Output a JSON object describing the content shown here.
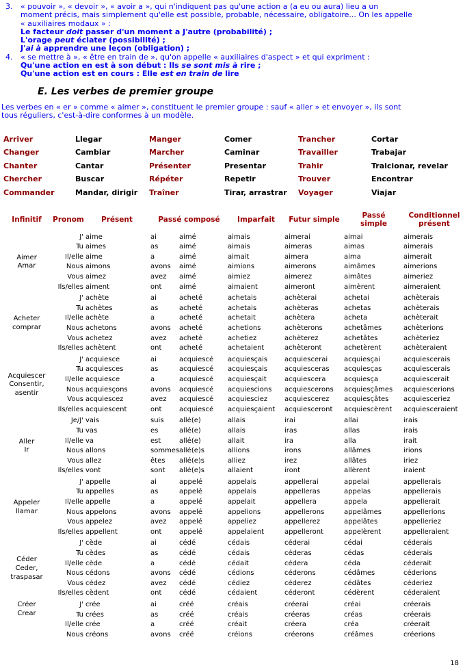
{
  "colors": {
    "text_blue": "#0000EE",
    "vocab_red": "#8B0000",
    "header_red": "#990000"
  },
  "page": {
    "number": "18"
  },
  "intro": {
    "items": [
      {
        "number": "3.",
        "lines": [
          {
            "segs": [
              {
                "t": "« pouvoir », « devoir », « avoir a », qui n'indiquent pas qu'une action a (a eu ou aura) lieu a un"
              }
            ]
          },
          {
            "segs": [
              {
                "t": "moment précis, mais simplement qu'elle est possible, probable, nécessaire, obligatoire... On les appelle"
              }
            ]
          },
          {
            "segs": [
              {
                "t": "« auxiliaires modaux » :"
              }
            ]
          },
          {
            "segs": [
              {
                "t": "Le facteur ",
                "b": true
              },
              {
                "t": "doit",
                "b": true,
                "i": true
              },
              {
                "t": " passer d'un moment a J'autre (probabilité) ;",
                "b": true
              }
            ]
          },
          {
            "segs": [
              {
                "t": "L'orage ",
                "b": true
              },
              {
                "t": "peut",
                "b": true,
                "i": true
              },
              {
                "t": " éclater (possibilité) ;",
                "b": true
              }
            ]
          },
          {
            "segs": [
              {
                "t": "J'",
                "b": true
              },
              {
                "t": "ai à",
                "b": true,
                "i": true
              },
              {
                "t": " apprendre une leçon (obligation) ;",
                "b": true
              }
            ]
          }
        ]
      },
      {
        "number": "4.",
        "lines": [
          {
            "segs": [
              {
                "t": "« se mettre à », « être en train de », qu'on appelle « auxiliaires d'aspect » et qui expriment :"
              }
            ]
          },
          {
            "segs": [
              {
                "t": "Qu'une action en est à son début : Ils ",
                "b": true
              },
              {
                "t": "se sont mis à",
                "b": true,
                "i": true
              },
              {
                "t": " rire ;",
                "b": true
              }
            ]
          },
          {
            "segs": [
              {
                "t": "Qu'une action est en cours : Elle ",
                "b": true
              },
              {
                "t": "est en train de",
                "b": true,
                "i": true
              },
              {
                "t": " lire",
                "b": true
              }
            ]
          }
        ]
      }
    ]
  },
  "heading": "E. Les verbes de premier groupe",
  "paragraph": {
    "lines": [
      "Les verbes en « er » comme « aimer », constituent le premier groupe : sauf « aller » et envoyer », ils sont",
      "tous réguliers, c'est-à-dire conformes à un modèle."
    ]
  },
  "vocab": {
    "rows": [
      [
        "Arriver",
        "Llegar",
        "Manger",
        "Comer",
        "Trancher",
        "Cortar"
      ],
      [
        "Changer",
        "Cambiar",
        "Marcher",
        "Caminar",
        "Travailler",
        "Trabajar"
      ],
      [
        "Chanter",
        "Cantar",
        "Présenter",
        "Presentar",
        "Trahir",
        "Traicionar, revelar"
      ],
      [
        "Chercher",
        "Buscar",
        "Répéter",
        "Repetir",
        "Trouver",
        "Encontrar"
      ],
      [
        "Commander",
        "Mandar, dirigir",
        "Traîner",
        "Tirar, arrastrar",
        "Voyager",
        "Viajar"
      ]
    ]
  },
  "conjugation": {
    "headers": [
      "Infinitif",
      "Pronom",
      "Présent",
      "Passé composé",
      "Imparfait",
      "Futur simple",
      "Passé\nsimple",
      "Conditionnel\nprésent"
    ],
    "verbs": [
      {
        "infinitive": [
          "Aimer",
          "Amar"
        ],
        "label_align": "center",
        "rows": [
          [
            "J'",
            "aime",
            "ai",
            "aimé",
            "aimais",
            "aimerai",
            "aimai",
            "aimerais"
          ],
          [
            "Tu",
            "aimes",
            "as",
            "aimé",
            "aimais",
            "aimeras",
            "aimas",
            "aimerais"
          ],
          [
            "Il/elle",
            "aime",
            "a",
            "aimé",
            "aimait",
            "aimera",
            "aima",
            "aimerait"
          ],
          [
            "Nous",
            "aimons",
            "avons",
            "aimé",
            "aimions",
            "aimerons",
            "aimâmes",
            "aimerions"
          ],
          [
            "Vous",
            "aimez",
            "avez",
            "aimé",
            "aimiez",
            "aimerez",
            "aimâtes",
            "aimeriez"
          ],
          [
            "Ils/elles",
            "aiment",
            "ont",
            "aimé",
            "aimaient",
            "aimeront",
            "aimèrent",
            "aimeraient"
          ]
        ]
      },
      {
        "infinitive": [
          "Acheter",
          "comprar"
        ],
        "label_align": "center",
        "rows": [
          [
            "J'",
            "achète",
            "ai",
            "acheté",
            "achetais",
            "achèterai",
            "achetai",
            "achèterais"
          ],
          [
            "Tu",
            "achètes",
            "as",
            "acheté",
            "achetais",
            "achèteras",
            "achetas",
            "achèterais"
          ],
          [
            "Il/elle",
            "achète",
            "a",
            "acheté",
            "achetait",
            "achètera",
            "acheta",
            "achèterait"
          ],
          [
            "Nous",
            "achetons",
            "avons",
            "acheté",
            "achetions",
            "achèterons",
            "achetâmes",
            "achèterions"
          ],
          [
            "Vous",
            "achetez",
            "avez",
            "acheté",
            "achetiez",
            "achèterez",
            "achetâtes",
            "achèteriez"
          ],
          [
            "Ils/elles",
            "achètent",
            "ont",
            "acheté",
            "achetaient",
            "achèteront",
            "achetèrent",
            "achèteraient"
          ]
        ]
      },
      {
        "infinitive": [
          "Acquiescer",
          "Consentir,",
          "asentir"
        ],
        "label_align": "center",
        "rows": [
          [
            "J'",
            "acquiesce",
            "ai",
            "acquiescé",
            "acquiesçais",
            "acquiescerai",
            "acquiesçai",
            "acquiescerais"
          ],
          [
            "Tu",
            "acquiesces",
            "as",
            "acquiescé",
            "acquiesçais",
            "acquiesceras",
            "acquiesças",
            "acquiescerais"
          ],
          [
            "Il/elle",
            "acquiesce",
            "a",
            "acquiescé",
            "acquiesçait",
            "acquiescera",
            "acquiesça",
            "acquiescerait"
          ],
          [
            "Nous",
            "acquiesçons",
            "avons",
            "acquiescé",
            "acquiescions",
            "acquiescerons",
            "acquiesçâmes",
            "acquiescerions"
          ],
          [
            "Vous",
            "acquiescez",
            "avez",
            "acquiescé",
            "acquiesciez",
            "acquiescerez",
            "acquiesçâtes",
            "acquiesceriez"
          ],
          [
            "Ils/elles",
            "acquiescent",
            "ont",
            "acquiescé",
            "acquiesçaient",
            "acquiesceront",
            "acquiescèrent",
            "acquiesceraient"
          ]
        ]
      },
      {
        "infinitive": [
          "Aller",
          "Ir"
        ],
        "label_align": "center",
        "rows": [
          [
            "Je/J'",
            "vais",
            "suis",
            "allé(e)",
            "allais",
            "irai",
            "allai",
            "irais"
          ],
          [
            "Tu",
            "vas",
            "es",
            "allé(e)",
            "allais",
            "iras",
            "allas",
            "irais"
          ],
          [
            "Il/elle",
            "va",
            "est",
            "allé(e)",
            "allait",
            "ira",
            "alla",
            "irait"
          ],
          [
            "Nous",
            "allons",
            "sommes",
            "allé(e)s",
            "allions",
            "irons",
            "allâmes",
            "irions"
          ],
          [
            "Vous",
            "allez",
            "êtes",
            "allé(e)s",
            "alliez",
            "irez",
            "allâtes",
            "iriez"
          ],
          [
            "Ils/elles",
            "vont",
            "sont",
            "allé(e)s",
            "allaient",
            "iront",
            "allèrent",
            "iraient"
          ]
        ]
      },
      {
        "infinitive": [
          "Appeler",
          "llamar"
        ],
        "label_align": "center",
        "rows": [
          [
            "J'",
            "appelle",
            "ai",
            "appelé",
            "appelais",
            "appellerai",
            "appelai",
            "appellerais"
          ],
          [
            "Tu",
            "appelles",
            "as",
            "appelé",
            "appelais",
            "appelleras",
            "appelas",
            "appellerais"
          ],
          [
            "Il/elle",
            "appelle",
            "a",
            "appelé",
            "appelait",
            "appellera",
            "appela",
            "appellerait"
          ],
          [
            "Nous",
            "appelons",
            "avons",
            "appelé",
            "appelions",
            "appellerons",
            "appelâmes",
            "appellerions"
          ],
          [
            "Vous",
            "appelez",
            "avez",
            "appelé",
            "appeliez",
            "appellerez",
            "appelâtes",
            "appelleriez"
          ],
          [
            "Ils/elles",
            "appellent",
            "ont",
            "appelé",
            "appelaient",
            "appelleront",
            "appelèrent",
            "appelleraient"
          ]
        ]
      },
      {
        "infinitive": [
          "Céder",
          "Ceder,",
          "traspasar"
        ],
        "label_align": "center",
        "rows": [
          [
            "J'",
            "cède",
            "ai",
            "cédé",
            "cédais",
            "céderai",
            "cédai",
            "céderais"
          ],
          [
            "Tu",
            "cèdes",
            "as",
            "cédé",
            "cédais",
            "céderas",
            "cédas",
            "céderais"
          ],
          [
            "Il/elle",
            "cède",
            "a",
            "cédé",
            "cédait",
            "cédera",
            "céda",
            "céderait"
          ],
          [
            "Nous",
            "cédons",
            "avons",
            "cédé",
            "cédions",
            "céderons",
            "cédâmes",
            "céderions"
          ],
          [
            "Vous",
            "cédez",
            "avez",
            "cédé",
            "cédiez",
            "céderez",
            "cédâtes",
            "céderiez"
          ],
          [
            "Ils/elles",
            "cèdent",
            "ont",
            "cédé",
            "cédaient",
            "céderont",
            "cédèrent",
            "céderaient"
          ]
        ]
      },
      {
        "infinitive": [
          "Créer",
          "Crear"
        ],
        "label_align": "top",
        "rows": [
          [
            "J'",
            "crée",
            "ai",
            "créé",
            "créais",
            "créerai",
            "créai",
            "créerais"
          ],
          [
            "Tu",
            "crées",
            "as",
            "créé",
            "créais",
            "créeras",
            "créas",
            "créerais"
          ],
          [
            "Il/elle",
            "crée",
            "a",
            "créé",
            "créait",
            "créera",
            "créa",
            "créerait"
          ],
          [
            "Nous",
            "créons",
            "avons",
            "créé",
            "créions",
            "créerons",
            "créâmes",
            "créerions"
          ]
        ]
      }
    ]
  }
}
